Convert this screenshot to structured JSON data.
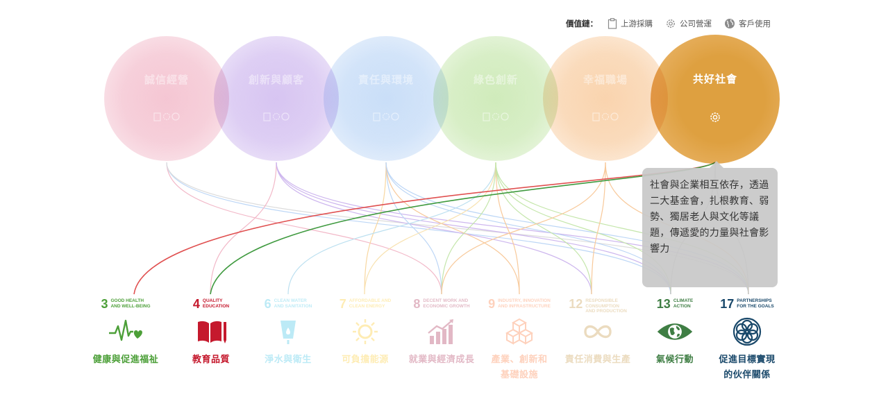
{
  "legend": {
    "title": "價值鏈：",
    "items": [
      {
        "label": "上游採購",
        "icon": "clipboard-icon"
      },
      {
        "label": "公司營運",
        "icon": "gear-icon"
      },
      {
        "label": "客戶使用",
        "icon": "globe-icon"
      }
    ]
  },
  "circles": [
    {
      "label": "誠信經營",
      "color": "#f2b8c8",
      "active": false
    },
    {
      "label": "創新與顧客",
      "color": "#cdb6ee",
      "active": false
    },
    {
      "label": "責任與環境",
      "color": "#bcd6f6",
      "active": false
    },
    {
      "label": "綠色創新",
      "color": "#c4e6aa",
      "active": false
    },
    {
      "label": "幸福職場",
      "color": "#f8c99a",
      "active": false
    },
    {
      "label": "共好社會",
      "color": "#dea040",
      "active": true
    }
  ],
  "tooltip": {
    "text": "社會與企業相互依存，透過二大基金會，扎根教育、弱勢、獨居老人與文化等議題，傳遞愛的力量與社會影響力"
  },
  "sdgs": [
    {
      "num": "3",
      "sub": "GOOD HEALTH\nAND WELL-BEING",
      "name": "健康與促進福祉",
      "name2": "",
      "color": "#4c9f38",
      "icon": "heartbeat-icon",
      "faded": false
    },
    {
      "num": "4",
      "sub": "QUALITY\nEDUCATION",
      "name": "教育品質",
      "name2": "",
      "color": "#c5192d",
      "icon": "book-icon",
      "faded": false
    },
    {
      "num": "6",
      "sub": "CLEAN WATER\nAND SANITATION",
      "name": "淨水與衛生",
      "name2": "",
      "color": "#26bde2",
      "icon": "water-icon",
      "faded": true
    },
    {
      "num": "7",
      "sub": "AFFORDABLE AND\nCLEAN ENERGY",
      "name": "可負擔能源",
      "name2": "",
      "color": "#fcc30b",
      "icon": "sun-icon",
      "faded": true
    },
    {
      "num": "8",
      "sub": "DECENT WORK AND\nECONOMIC GROWTH",
      "name": "就業與經濟成長",
      "name2": "",
      "color": "#a21942",
      "icon": "growth-chart-icon",
      "faded": true
    },
    {
      "num": "9",
      "sub": "INDUSTRY, INNOVATION\nAND INFRASTRUCTURE",
      "name": "產業、創新和",
      "name2": "基礎設施",
      "color": "#fd6925",
      "icon": "cubes-icon",
      "faded": true
    },
    {
      "num": "12",
      "sub": "RESPONSIBLE\nCONSUMPTION\nAND PRODUCTION",
      "name": "責任消費與生產",
      "name2": "",
      "color": "#bf8b2e",
      "icon": "infinity-icon",
      "faded": true
    },
    {
      "num": "13",
      "sub": "CLIMATE\nACTION",
      "name": "氣候行動",
      "name2": "",
      "color": "#3f7e44",
      "icon": "eye-globe-icon",
      "faded": false
    },
    {
      "num": "17",
      "sub": "PARTNERSHIPS\nFOR THE GOALS",
      "name": "促進目標實現",
      "name2": "的伙伴關係",
      "color": "#19486a",
      "icon": "flower-icon",
      "faded": false
    }
  ]
}
